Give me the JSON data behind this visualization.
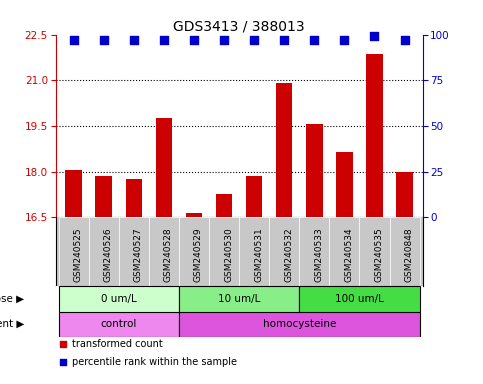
{
  "title": "GDS3413 / 388013",
  "samples": [
    "GSM240525",
    "GSM240526",
    "GSM240527",
    "GSM240528",
    "GSM240529",
    "GSM240530",
    "GSM240531",
    "GSM240532",
    "GSM240533",
    "GSM240534",
    "GSM240535",
    "GSM240848"
  ],
  "transformed_count": [
    18.05,
    17.85,
    17.75,
    19.75,
    16.65,
    17.25,
    17.85,
    20.9,
    19.55,
    18.65,
    21.85,
    18.0
  ],
  "percentile_rank": [
    97,
    97,
    97,
    97,
    97,
    97,
    97,
    97,
    97,
    97,
    99,
    97
  ],
  "ylim": [
    16.5,
    22.5
  ],
  "yticks": [
    16.5,
    18,
    19.5,
    21,
    22.5
  ],
  "y2lim": [
    0,
    100
  ],
  "y2ticks": [
    0,
    25,
    50,
    75,
    100
  ],
  "bar_color": "#cc0000",
  "dot_color": "#0000cc",
  "dot_size": 40,
  "grid_yticks": [
    18,
    19.5,
    21
  ],
  "dose_groups": [
    {
      "label": "0 um/L",
      "start": 0,
      "end": 4,
      "color": "#ccffcc"
    },
    {
      "label": "10 um/L",
      "start": 4,
      "end": 8,
      "color": "#88ee88"
    },
    {
      "label": "100 um/L",
      "start": 8,
      "end": 12,
      "color": "#44dd44"
    }
  ],
  "agent_groups": [
    {
      "label": "control",
      "start": 0,
      "end": 4,
      "color": "#ee88ee"
    },
    {
      "label": "homocysteine",
      "start": 4,
      "end": 12,
      "color": "#dd55dd"
    }
  ],
  "dose_label": "dose",
  "agent_label": "agent",
  "legend_items": [
    {
      "color": "#cc0000",
      "label": "transformed count"
    },
    {
      "color": "#0000cc",
      "label": "percentile rank within the sample"
    }
  ],
  "xticklabel_fontsize": 6.5,
  "yticklabel_fontsize": 7.5,
  "title_fontsize": 10,
  "bar_width": 0.55,
  "sample_bg_color": "#c8c8c8",
  "plot_bg_color": "#ffffff"
}
